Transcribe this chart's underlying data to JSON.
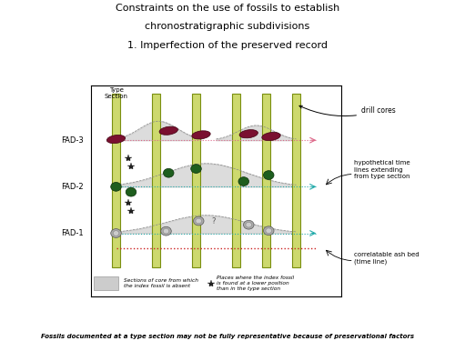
{
  "title_line1": "Constraints on the use of fossils to establish",
  "title_line2": "chronostratigraphic subdivisions",
  "title_line3": "1. Imperfection of the preserved record",
  "footer": "Fossils documented at a type section may not be fully representative because of preservational factors",
  "bg_color": "#ffffff",
  "column_color_fill": "#cdd96e",
  "column_color_edge": "#7a8f10",
  "fossil_red_color": "#7a1030",
  "fossil_green_color": "#1e5e1e",
  "ash_line_color": "#cc2222",
  "time_line_color": "#22aaaa",
  "dashed_connect_pink": "#dd6688",
  "hill_color": "#bbbbbb",
  "hill_alpha": 0.5
}
